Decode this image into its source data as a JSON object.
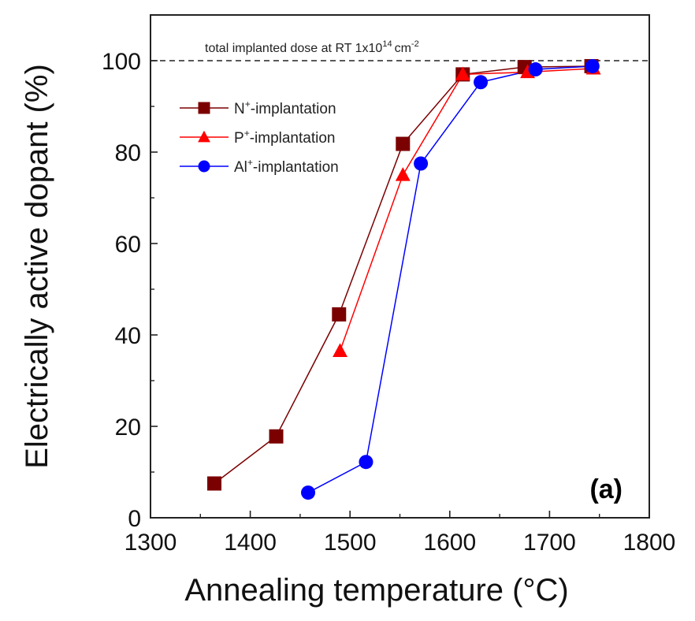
{
  "chart_data": {
    "type": "line",
    "xlabel": "Annealing temperature (°C)",
    "ylabel": "Electrically active dopant (%)",
    "xlim": [
      1300,
      1800
    ],
    "ylim": [
      0,
      110
    ],
    "xticks": [
      1300,
      1400,
      1500,
      1600,
      1700,
      1800
    ],
    "yticks": [
      0,
      20,
      40,
      60,
      80,
      100
    ],
    "xtick_labels": [
      "1300",
      "1400",
      "1500",
      "1600",
      "1700",
      "1800"
    ],
    "ytick_labels": [
      "0",
      "20",
      "40",
      "60",
      "80",
      "100"
    ],
    "panel_label": "(a)",
    "reference_line": {
      "y": 100,
      "style": "dashed",
      "label_parts": [
        "total implanted dose at RT 1x10",
        "14",
        "cm",
        "-2"
      ]
    },
    "legend_position": "top-left",
    "series": [
      {
        "name": "N+-implantation",
        "label_parts": [
          "N",
          "+",
          "-implantation"
        ],
        "color": "#7b0000",
        "marker": "square",
        "x": [
          1364,
          1426,
          1489,
          1553,
          1613,
          1675,
          1742
        ],
        "y": [
          7.5,
          17.8,
          44.5,
          81.8,
          97.0,
          98.6,
          98.8
        ]
      },
      {
        "name": "P+-implantation",
        "label_parts": [
          "P",
          "+",
          "-implantation"
        ],
        "color": "#ff0000",
        "marker": "triangle",
        "x": [
          1490,
          1553,
          1613,
          1678,
          1744
        ],
        "y": [
          36.5,
          75.0,
          97.0,
          97.5,
          98.3
        ]
      },
      {
        "name": "Al+-implantation",
        "label_parts": [
          "Al",
          "+",
          "-implantation"
        ],
        "color": "#0000ff",
        "marker": "circle",
        "x": [
          1458,
          1516,
          1571,
          1631,
          1686,
          1743
        ],
        "y": [
          5.5,
          12.2,
          77.5,
          95.3,
          98.1,
          98.8
        ]
      }
    ]
  }
}
